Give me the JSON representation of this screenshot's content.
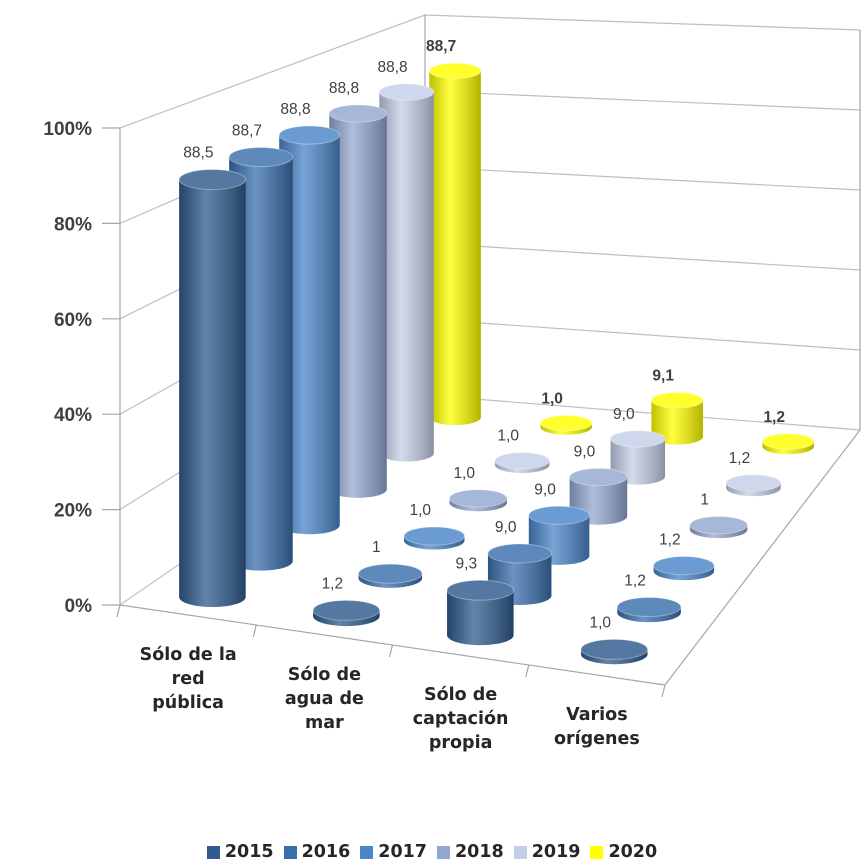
{
  "chart_data": {
    "type": "bar3d",
    "categories": [
      "Sólo de la red pública",
      "Sólo de agua de mar",
      "Sólo de captación propia",
      "Varios orígenes"
    ],
    "series": [
      {
        "name": "2015",
        "color": "#2f5b8e",
        "values": [
          88.5,
          1.2,
          9.3,
          1.0
        ],
        "value_labels": [
          "88,5",
          "1,2",
          "9,3",
          "1,0"
        ]
      },
      {
        "name": "2016",
        "color": "#3a6fad",
        "values": [
          88.7,
          1,
          9.0,
          1.2
        ],
        "value_labels": [
          "88,7",
          "1",
          "9,0",
          "1,2"
        ]
      },
      {
        "name": "2017",
        "color": "#4a86c8",
        "values": [
          88.8,
          1.0,
          9.0,
          1.2
        ],
        "value_labels": [
          "88,8",
          "1,0",
          "9,0",
          "1,2"
        ]
      },
      {
        "name": "2018",
        "color": "#93a8d0",
        "values": [
          88.8,
          1.0,
          9.0,
          1
        ],
        "value_labels": [
          "88,8",
          "1,0",
          "9,0",
          "1"
        ]
      },
      {
        "name": "2019",
        "color": "#c4cfe7",
        "values": [
          88.8,
          1.0,
          9.0,
          1.2
        ],
        "value_labels": [
          "88,8",
          "1,0",
          "9,0",
          "1,2"
        ]
      },
      {
        "name": "2020",
        "color": "#ffff00",
        "values": [
          88.7,
          1.0,
          9.1,
          1.2
        ],
        "value_labels": [
          "88,7",
          "1,0",
          "9,1",
          "1,2"
        ]
      }
    ],
    "ylim": [
      0,
      100
    ],
    "yticks": [
      {
        "value": 0,
        "label": "0%"
      },
      {
        "value": 20,
        "label": "20%"
      },
      {
        "value": 40,
        "label": "40%"
      },
      {
        "value": 60,
        "label": "60%"
      },
      {
        "value": 80,
        "label": "80%"
      },
      {
        "value": 100,
        "label": "100%"
      }
    ],
    "grid": true,
    "legend": "bottom"
  }
}
